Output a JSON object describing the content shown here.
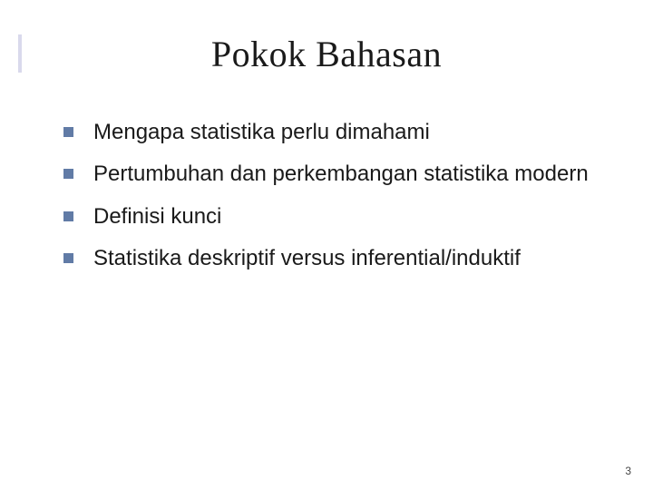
{
  "slide": {
    "title": "Pokok Bahasan",
    "bullets": [
      "Mengapa statistika perlu dimahami",
      "Pertumbuhan dan perkembangan statistika modern",
      "Definisi kunci",
      "Statistika deskriptif versus inferential/induktif"
    ],
    "page_number": "3",
    "colors": {
      "background": "#ffffff",
      "title_text": "#1a1a1a",
      "body_text": "#1a1a1a",
      "bullet_square": "#617ba6",
      "accent_bar": "#6666b3",
      "page_number": "#464646"
    },
    "typography": {
      "title_font": "Times New Roman",
      "title_size_pt": 30,
      "body_font": "Tahoma",
      "body_size_pt": 18
    }
  }
}
